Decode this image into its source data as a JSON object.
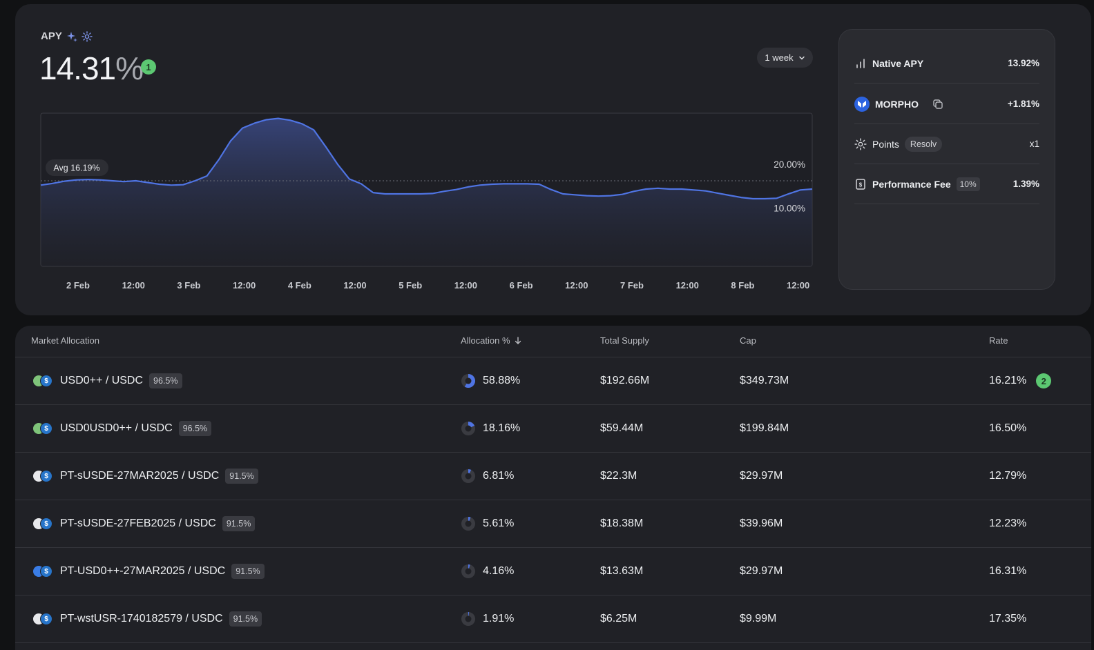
{
  "apy": {
    "label": "APY",
    "value": "14.31",
    "unit": "%",
    "badge": "1"
  },
  "range": {
    "label": "1 week"
  },
  "chart_data": {
    "type": "area",
    "x_ticks": [
      "2 Feb",
      "12:00",
      "3 Feb",
      "12:00",
      "4 Feb",
      "12:00",
      "5 Feb",
      "12:00",
      "6 Feb",
      "12:00",
      "7 Feb",
      "12:00",
      "8 Feb",
      "12:00"
    ],
    "y_ticks": [
      "20.00%",
      "10.00%"
    ],
    "y_tick_values": [
      20,
      10
    ],
    "ylim": [
      -3.3,
      31.6
    ],
    "average": {
      "label": "Avg 16.19%",
      "value": 16.19
    },
    "series": [
      {
        "values": [
          15.2,
          15.6,
          16.1,
          16.4,
          16.5,
          16.4,
          16.2,
          16.0,
          16.2,
          15.8,
          15.4,
          15.2,
          15.3,
          16.2,
          17.3,
          21.0,
          25.3,
          28.2,
          29.3,
          30.1,
          30.4,
          30.0,
          29.2,
          27.8,
          24.0,
          20.0,
          16.6,
          15.5,
          13.5,
          13.2,
          13.2,
          13.2,
          13.2,
          13.3,
          13.8,
          14.2,
          14.8,
          15.2,
          15.4,
          15.5,
          15.5,
          15.5,
          15.4,
          14.2,
          13.2,
          13.0,
          12.8,
          12.7,
          12.8,
          13.1,
          13.8,
          14.3,
          14.5,
          14.3,
          14.3,
          14.1,
          13.9,
          13.4,
          12.9,
          12.4,
          12.1,
          12.1,
          12.2,
          13.2,
          14.1,
          14.3
        ]
      }
    ]
  },
  "side": {
    "native": {
      "label": "Native APY",
      "value": "13.92%"
    },
    "morpho": {
      "label": "MORPHO",
      "value": "+1.81%"
    },
    "points": {
      "label": "Points",
      "tag": "Resolv",
      "value": "x1"
    },
    "fee": {
      "label": "Performance Fee",
      "tag": "10%",
      "value": "1.39%"
    }
  },
  "table": {
    "headers": {
      "market": "Market Allocation",
      "allocation": "Allocation %",
      "supply": "Total Supply",
      "cap": "Cap",
      "rate": "Rate"
    },
    "rows": [
      {
        "market": "USD0++ / USDC",
        "ltv": "96.5%",
        "allocation": "58.88%",
        "alloc_pct": 58.88,
        "supply": "$192.66M",
        "cap": "$349.73M",
        "rate": "16.21%",
        "badge": "2",
        "icon": "usd0pp"
      },
      {
        "market": "USD0USD0++ / USDC",
        "ltv": "96.5%",
        "allocation": "18.16%",
        "alloc_pct": 18.16,
        "supply": "$59.44M",
        "cap": "$199.84M",
        "rate": "16.50%",
        "icon": "usd0pp"
      },
      {
        "market": "PT-sUSDE-27MAR2025 / USDC",
        "ltv": "91.5%",
        "allocation": "6.81%",
        "alloc_pct": 6.81,
        "supply": "$22.3M",
        "cap": "$29.97M",
        "rate": "12.79%",
        "icon": "pt"
      },
      {
        "market": "PT-sUSDE-27FEB2025 / USDC",
        "ltv": "91.5%",
        "allocation": "5.61%",
        "alloc_pct": 5.61,
        "supply": "$18.38M",
        "cap": "$39.96M",
        "rate": "12.23%",
        "icon": "pt"
      },
      {
        "market": "PT-USD0++-27MAR2025 / USDC",
        "ltv": "91.5%",
        "allocation": "4.16%",
        "alloc_pct": 4.16,
        "supply": "$13.63M",
        "cap": "$29.97M",
        "rate": "16.31%",
        "icon": "ptblue"
      },
      {
        "market": "PT-wstUSR-1740182579 / USDC",
        "ltv": "91.5%",
        "allocation": "1.91%",
        "alloc_pct": 1.91,
        "supply": "$6.25M",
        "cap": "$9.99M",
        "rate": "17.35%",
        "icon": "pt"
      }
    ]
  },
  "colors": {
    "line": "#4f74e3",
    "accent_green": "#5cc872",
    "usdc": "#2775ca"
  }
}
